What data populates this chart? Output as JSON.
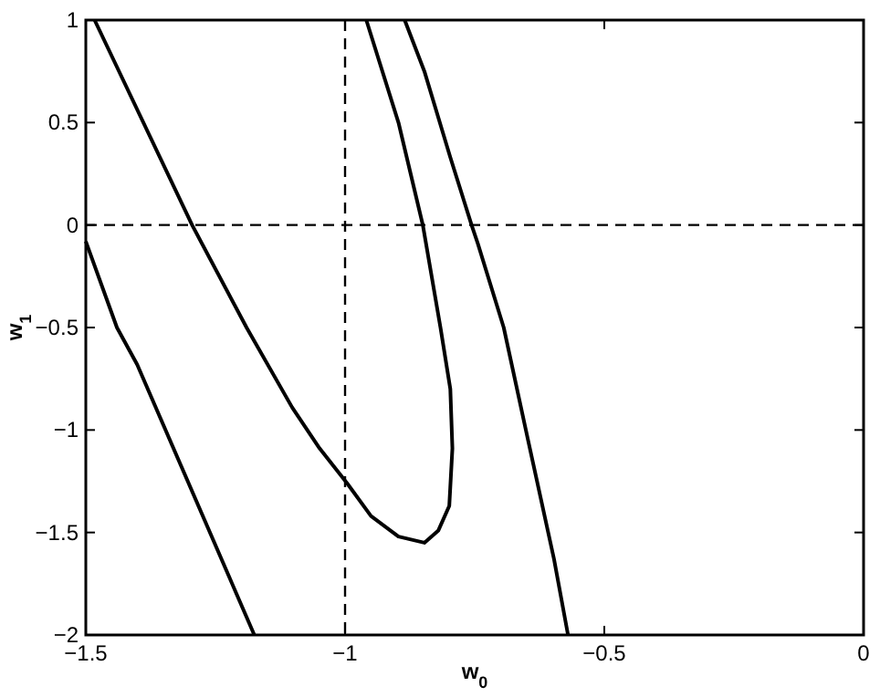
{
  "chart_data": {
    "type": "line",
    "xlabel": "w$_{0}$",
    "ylabel": "w$_{1}$",
    "xlim": [
      -1.5,
      0
    ],
    "ylim": [
      -2,
      1
    ],
    "xticks": [
      -1.5,
      -1,
      -0.5,
      0
    ],
    "yticks": [
      -2,
      -1.5,
      -1,
      -0.5,
      0,
      0.5,
      1
    ],
    "grid": false,
    "line_style": "solid",
    "series": [
      {
        "color": "#000000",
        "x": [
          -1.483,
          -1.295,
          -1.19,
          -1.102,
          -1.049,
          -0.996,
          -0.95,
          -0.897,
          -0.847,
          -0.82,
          -0.799,
          -0.793,
          -0.797,
          -0.816,
          -0.85,
          -0.897,
          -0.959
        ],
        "values": [
          1,
          0,
          -0.5,
          -0.89,
          -1.09,
          -1.26,
          -1.42,
          -1.52,
          -1.55,
          -1.49,
          -1.37,
          -1.09,
          -0.8,
          -0.5,
          0,
          0.5,
          1
        ]
      },
      {
        "color": "#000000",
        "x": [
          -1.5,
          -1.44,
          -1.401,
          -1.175
        ],
        "values": [
          -0.08,
          -0.5,
          -0.68,
          -2
        ]
      },
      {
        "color": "#000000",
        "x": [
          -0.885,
          -0.847,
          -0.797,
          -0.756,
          -0.744,
          -0.694,
          -0.647,
          -0.597,
          -0.57
        ],
        "values": [
          1,
          0.75,
          0.33,
          0,
          -0.09,
          -0.5,
          -1.05,
          -1.63,
          -2
        ]
      }
    ],
    "ref_lines": [
      {
        "axis": "x",
        "value": -1,
        "line_style": "dashed",
        "color": "#000000"
      },
      {
        "axis": "y",
        "value": 0,
        "line_style": "dashed",
        "color": "#000000"
      }
    ]
  }
}
